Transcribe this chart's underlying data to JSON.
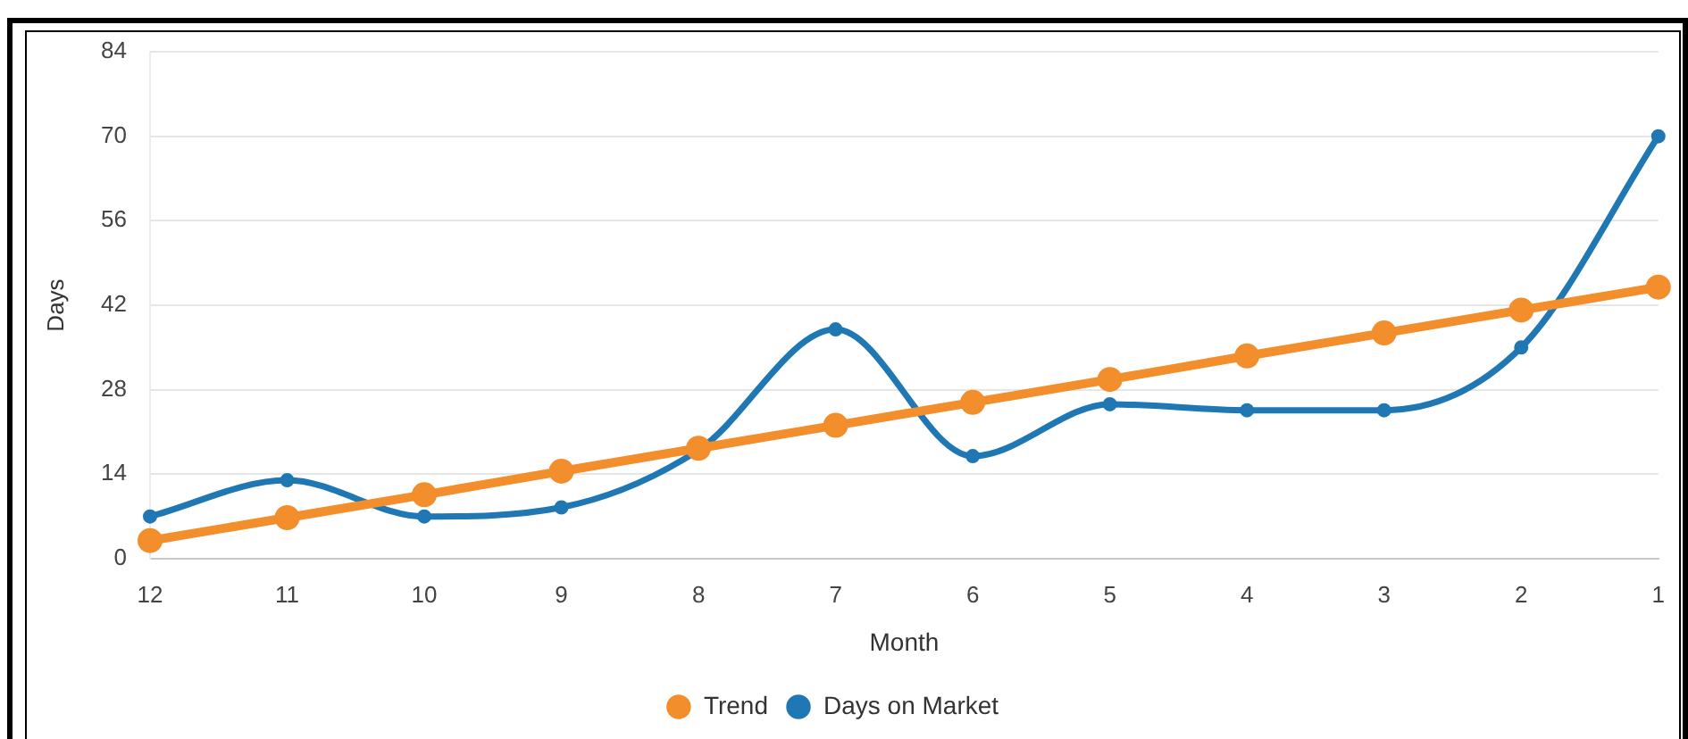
{
  "chart_data": {
    "type": "line",
    "xlabel": "Month",
    "ylabel": "Days",
    "categories": [
      "12",
      "11",
      "10",
      "9",
      "8",
      "7",
      "6",
      "5",
      "4",
      "3",
      "2",
      "1"
    ],
    "series": [
      {
        "name": "Trend",
        "color": "#f28e2b",
        "values": [
          3.0,
          6.8,
          10.6,
          14.5,
          18.3,
          22.1,
          25.9,
          29.7,
          33.6,
          37.4,
          41.2,
          45.0
        ]
      },
      {
        "name": "Days on Market",
        "color": "#1f77b4",
        "values": [
          7,
          13,
          7,
          8.5,
          18,
          38,
          17,
          25.6,
          24.6,
          24.6,
          35,
          70
        ]
      }
    ],
    "ylim": [
      0,
      84
    ],
    "yticks": [
      0,
      14,
      28,
      42,
      56,
      70,
      84
    ],
    "grid": "y",
    "legend": "bottom",
    "marker": "circle"
  }
}
